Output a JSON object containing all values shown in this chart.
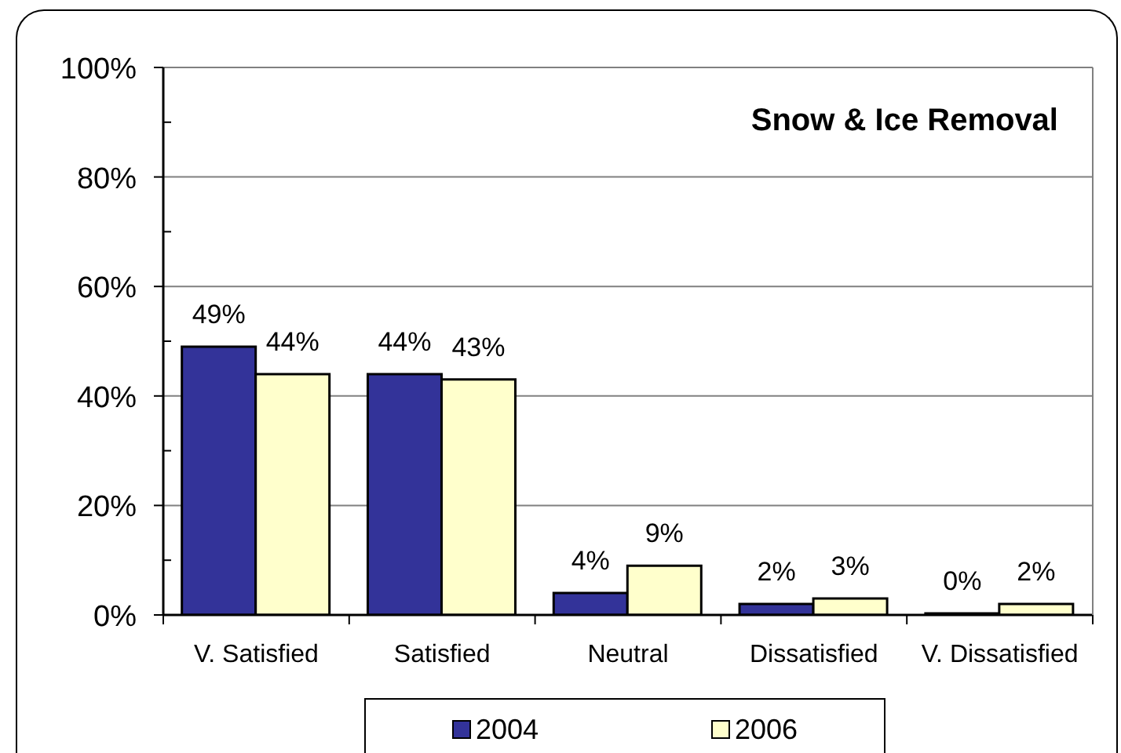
{
  "chart_data": {
    "type": "bar",
    "title": "Snow & Ice Removal",
    "categories": [
      "V. Satisfied",
      "Satisfied",
      "Neutral",
      "Dissatisfied",
      "V. Dissatisfied"
    ],
    "series": [
      {
        "name": "2004",
        "color": "#333399",
        "values": [
          49,
          44,
          4,
          2,
          0
        ],
        "value_labels": [
          "49%",
          "44%",
          "4%",
          "2%",
          "0%"
        ]
      },
      {
        "name": "2006",
        "color": "#ffffcc",
        "values": [
          44,
          43,
          9,
          3,
          2
        ],
        "value_labels": [
          "44%",
          "43%",
          "9%",
          "3%",
          "2%"
        ]
      }
    ],
    "ylim": [
      0,
      100
    ],
    "yticks": [
      {
        "value": 0,
        "label": "0%"
      },
      {
        "value": 10,
        "label": null
      },
      {
        "value": 20,
        "label": "20%"
      },
      {
        "value": 30,
        "label": null
      },
      {
        "value": 40,
        "label": "40%"
      },
      {
        "value": 50,
        "label": null
      },
      {
        "value": 60,
        "label": "60%"
      },
      {
        "value": 70,
        "label": null
      },
      {
        "value": 80,
        "label": "80%"
      },
      {
        "value": 90,
        "label": null
      },
      {
        "value": 100,
        "label": "100%"
      }
    ],
    "grid": "y",
    "legend": "bottom"
  }
}
